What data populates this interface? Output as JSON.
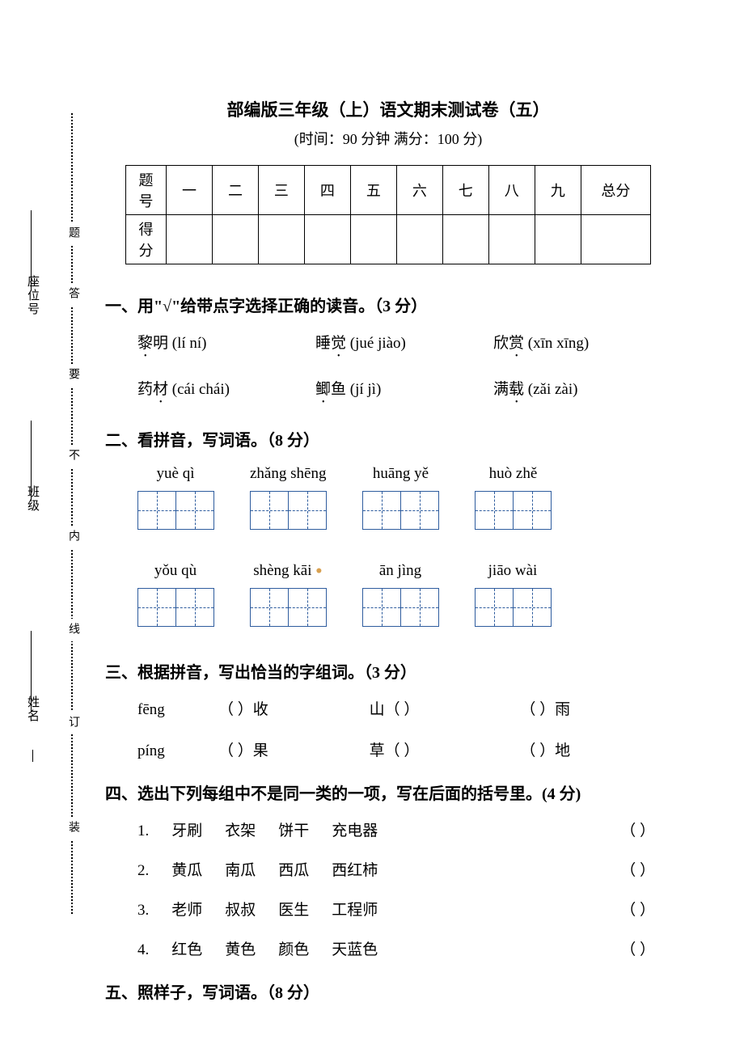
{
  "header": {
    "title": "部编版三年级（上）语文期末测试卷（五）",
    "subtitle": "(时间：90 分钟  满分：100 分)"
  },
  "sidebar": {
    "segments": [
      "装",
      "订",
      "线",
      "内",
      "不",
      "要",
      "答",
      "题"
    ],
    "fields": {
      "name": "姓名",
      "class": "班级",
      "seat": "座位号"
    }
  },
  "scoreTable": {
    "row1_label": "题号",
    "headers": [
      "一",
      "二",
      "三",
      "四",
      "五",
      "六",
      "七",
      "八",
      "九",
      "总分"
    ],
    "row2_label": "得分"
  },
  "q1": {
    "heading": "一、用\"√\"给带点字选择正确的读音。（3 分）",
    "rows": [
      [
        {
          "ch": "黎",
          "rest": "明 (lí  ní)"
        },
        {
          "pre": "睡",
          "ch": "觉",
          "rest": " (jué  jiào)"
        },
        {
          "pre": "欣",
          "ch": "赏",
          "rest": " (xīn  xīng)"
        }
      ],
      [
        {
          "pre": "药",
          "ch": "材",
          "rest": " (cái  chái)"
        },
        {
          "ch": "鲫",
          "rest": "鱼 (jí  jì)"
        },
        {
          "pre": "满",
          "ch": "载",
          "rest": " (zǎi  zài)"
        }
      ]
    ]
  },
  "q2": {
    "heading": "二、看拼音，写词语。（8 分）",
    "rows": [
      [
        "yuè  qì",
        "zhǎng shēng",
        "huāng yě",
        "huò zhě"
      ],
      [
        "yǒu qù",
        "shèng kāi",
        "ān  jìng",
        "jiāo  wài"
      ]
    ]
  },
  "q3": {
    "heading": "三、根据拼音，写出恰当的字组词。（3 分）",
    "rows": [
      {
        "pinyin": "fēng",
        "items": [
          "（    ）收",
          "山（    ）",
          "（    ）雨"
        ]
      },
      {
        "pinyin": "píng",
        "items": [
          "（    ）果",
          "草（    ）",
          "（    ）地"
        ]
      }
    ]
  },
  "q4": {
    "heading": "四、选出下列每组中不是同一类的一项，写在后面的括号里。(4 分)",
    "rows": [
      {
        "num": "1.",
        "words": [
          "牙刷",
          "衣架",
          "饼干",
          "充电器"
        ],
        "blank": "（        ）"
      },
      {
        "num": "2.",
        "words": [
          "黄瓜",
          "南瓜",
          "西瓜",
          "西红柿"
        ],
        "blank": "（        ）"
      },
      {
        "num": "3.",
        "words": [
          "老师",
          "叔叔",
          "医生",
          "工程师"
        ],
        "blank": "（        ）"
      },
      {
        "num": "4.",
        "words": [
          "红色",
          "黄色",
          "颜色",
          "天蓝色"
        ],
        "blank": "（        ）"
      }
    ]
  },
  "q5": {
    "heading": "五、照样子，写词语。（8 分）"
  }
}
